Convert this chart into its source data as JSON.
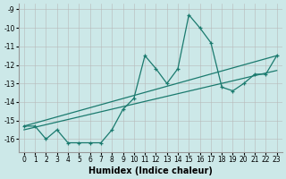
{
  "xlabel": "Humidex (Indice chaleur)",
  "x_values": [
    0,
    1,
    2,
    3,
    4,
    5,
    6,
    7,
    8,
    9,
    10,
    11,
    12,
    13,
    14,
    15,
    16,
    17,
    18,
    19,
    20,
    21,
    22,
    23
  ],
  "line_marker_y": [
    -15.3,
    -15.3,
    -16.0,
    -15.5,
    -16.2,
    -16.2,
    -16.2,
    -16.2,
    -15.5,
    -14.4,
    -13.8,
    -11.5,
    -12.2,
    -13.0,
    -12.2,
    -9.3,
    -10.0,
    -10.8,
    -13.2,
    -13.4,
    -13.0,
    -12.5,
    -12.5,
    -11.5
  ],
  "line_trend1_x": [
    0,
    23
  ],
  "line_trend1_y": [
    -15.3,
    -11.5
  ],
  "line_trend2_x": [
    0,
    23
  ],
  "line_trend2_y": [
    -15.5,
    -12.3
  ],
  "bg_color": "#cce8e8",
  "line_color": "#1a7a6e",
  "grid_color": "#b8b8b8",
  "ylim": [
    -16.7,
    -8.7
  ],
  "yticks": [
    -16,
    -15,
    -14,
    -13,
    -12,
    -11,
    -10,
    -9
  ],
  "xticks": [
    0,
    1,
    2,
    3,
    4,
    5,
    6,
    7,
    8,
    9,
    10,
    11,
    12,
    13,
    14,
    15,
    16,
    17,
    18,
    19,
    20,
    21,
    22,
    23
  ]
}
